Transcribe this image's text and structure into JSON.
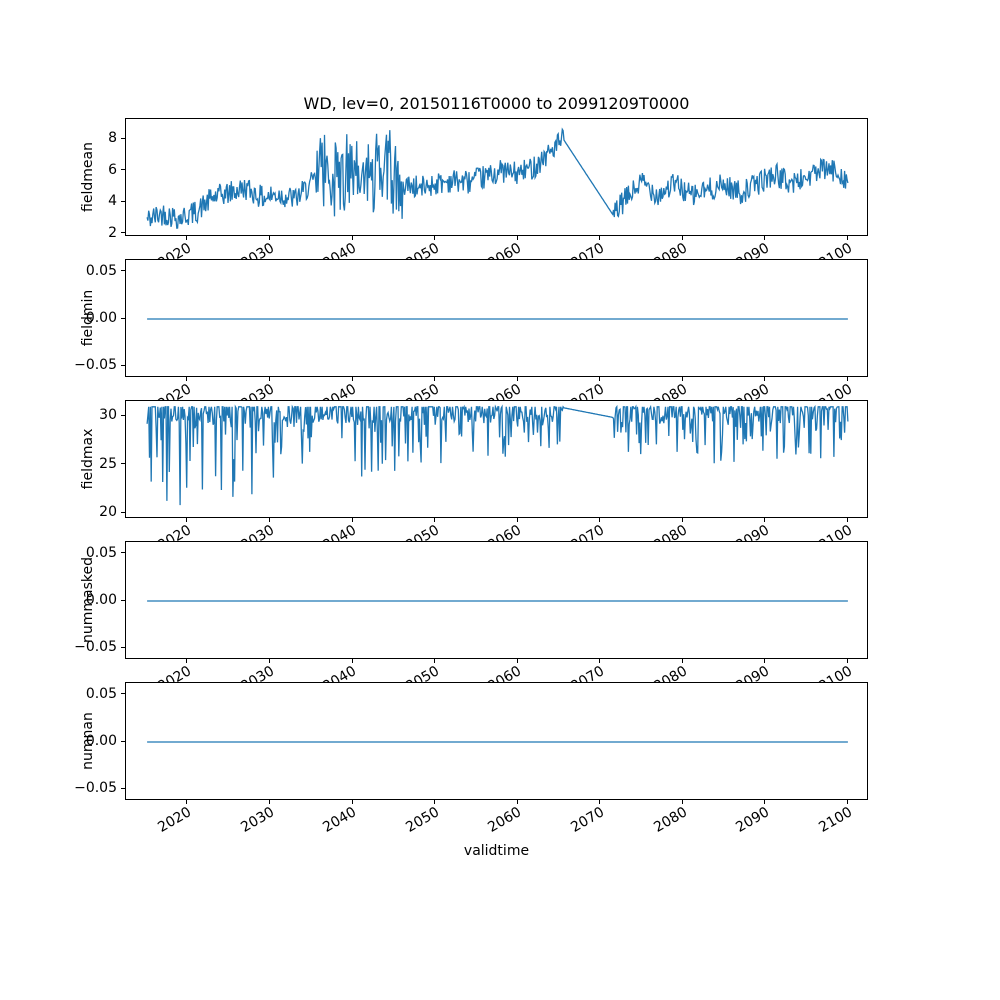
{
  "title": "WD, lev=0, 20150116T0000 to 20991209T0000",
  "x_axis": {
    "label": "validtime",
    "min": 2012.5,
    "max": 2102.5,
    "ticks": [
      2020,
      2030,
      2040,
      2050,
      2060,
      2070,
      2080,
      2090,
      2100
    ],
    "tick_labels": [
      "2020",
      "2030",
      "2040",
      "2050",
      "2060",
      "2070",
      "2080",
      "2090",
      "2100"
    ]
  },
  "style": {
    "line_color": "#1f77b4",
    "axis_color": "#000000",
    "background": "#ffffff"
  },
  "chart_data": [
    {
      "type": "line",
      "name": "fieldmean",
      "ylabel": "fieldmean",
      "ylim": [
        1.8,
        9.3
      ],
      "yticks": [
        {
          "value": 8,
          "label": "8"
        },
        {
          "value": 6,
          "label": "6"
        },
        {
          "value": 4,
          "label": "4"
        },
        {
          "value": 2,
          "label": "2"
        }
      ],
      "series": {
        "kind": "noisy",
        "seed": 42,
        "x_start": 2015.05,
        "x_end": 2099.95,
        "x_step": 0.1,
        "base": [
          [
            2015.05,
            2.9
          ],
          [
            2017,
            3.3
          ],
          [
            2019,
            3.0
          ],
          [
            2021,
            3.4
          ],
          [
            2023,
            4.3
          ],
          [
            2025,
            4.6
          ],
          [
            2027,
            4.9
          ],
          [
            2029,
            4.3
          ],
          [
            2031,
            4.5
          ],
          [
            2033,
            4.2
          ],
          [
            2035,
            5.2
          ],
          [
            2036,
            5.5
          ],
          [
            2038,
            5.6
          ],
          [
            2040,
            5.4
          ],
          [
            2042,
            5.7
          ],
          [
            2044,
            5.5
          ],
          [
            2046,
            5.2
          ],
          [
            2048,
            4.9
          ],
          [
            2050,
            5.2
          ],
          [
            2052,
            5.4
          ],
          [
            2054,
            5.3
          ],
          [
            2056,
            5.6
          ],
          [
            2058,
            6.0
          ],
          [
            2060,
            5.8
          ],
          [
            2062,
            6.3
          ],
          [
            2064,
            7.3
          ],
          [
            2065.5,
            8.0
          ],
          [
            2071.5,
            3.2
          ],
          [
            2073,
            4.2
          ],
          [
            2075,
            5.3
          ],
          [
            2077,
            4.5
          ],
          [
            2079,
            5.2
          ],
          [
            2081,
            4.4
          ],
          [
            2083,
            4.8
          ],
          [
            2085,
            5.1
          ],
          [
            2087,
            4.6
          ],
          [
            2089,
            5.2
          ],
          [
            2091,
            5.8
          ],
          [
            2093,
            5.2
          ],
          [
            2095,
            5.6
          ],
          [
            2097,
            6.1
          ],
          [
            2099,
            5.9
          ],
          [
            2099.95,
            5.3
          ]
        ],
        "noise_amp": 0.75,
        "bands": [
          {
            "from": 2035.5,
            "to": 2046,
            "amp": 2.5
          }
        ],
        "peak_bonus": 0.9,
        "gaps": [
          [
            2065.5,
            2071.5
          ]
        ],
        "clamp": [
          2.25,
          8.85
        ]
      }
    },
    {
      "type": "line",
      "name": "fieldmin",
      "ylabel": "fieldmin",
      "ylim": [
        -0.0625,
        0.0625
      ],
      "yticks": [
        {
          "value": 0.05,
          "label": "0.05"
        },
        {
          "value": 0,
          "label": "0.00"
        },
        {
          "value": -0.05,
          "label": "−0.05"
        }
      ],
      "series": {
        "kind": "flat",
        "value": 0,
        "x_start": 2015.05,
        "x_end": 2099.95
      }
    },
    {
      "type": "line",
      "name": "fieldmax",
      "ylabel": "fieldmax",
      "ylim": [
        19.4,
        31.6
      ],
      "yticks": [
        {
          "value": 30,
          "label": "30"
        },
        {
          "value": 25,
          "label": "25"
        },
        {
          "value": 20,
          "label": "20"
        }
      ],
      "series": {
        "kind": "spiky",
        "seed": 7,
        "x_start": 2015.05,
        "x_end": 2099.95,
        "x_step": 0.1,
        "top": 31,
        "hover_amp": 1.7,
        "spike_prob": 0.3,
        "depth": [
          [
            2015,
            11
          ],
          [
            2024,
            11
          ],
          [
            2032,
            8.5
          ],
          [
            2040,
            8
          ],
          [
            2048,
            6
          ],
          [
            2060,
            5.5
          ],
          [
            2070,
            5.5
          ],
          [
            2080,
            6
          ],
          [
            2100,
            5.2
          ]
        ],
        "gaps": [
          [
            2065.5,
            2071.5
          ]
        ],
        "gap_values": [
          30.9,
          29.9
        ],
        "clamp": [
          19.9,
          31
        ]
      }
    },
    {
      "type": "line",
      "name": "nummasked",
      "ylabel": "nummasked",
      "ylim": [
        -0.0625,
        0.0625
      ],
      "yticks": [
        {
          "value": 0.05,
          "label": "0.05"
        },
        {
          "value": 0,
          "label": "0.00"
        },
        {
          "value": -0.05,
          "label": "−0.05"
        }
      ],
      "series": {
        "kind": "flat",
        "value": 0,
        "x_start": 2015.05,
        "x_end": 2099.95
      }
    },
    {
      "type": "line",
      "name": "numnan",
      "ylabel": "numnan",
      "ylim": [
        -0.0625,
        0.0625
      ],
      "yticks": [
        {
          "value": 0.05,
          "label": "0.05"
        },
        {
          "value": 0,
          "label": "0.00"
        },
        {
          "value": -0.05,
          "label": "−0.05"
        }
      ],
      "series": {
        "kind": "flat",
        "value": 0,
        "x_start": 2015.05,
        "x_end": 2099.95
      }
    }
  ]
}
